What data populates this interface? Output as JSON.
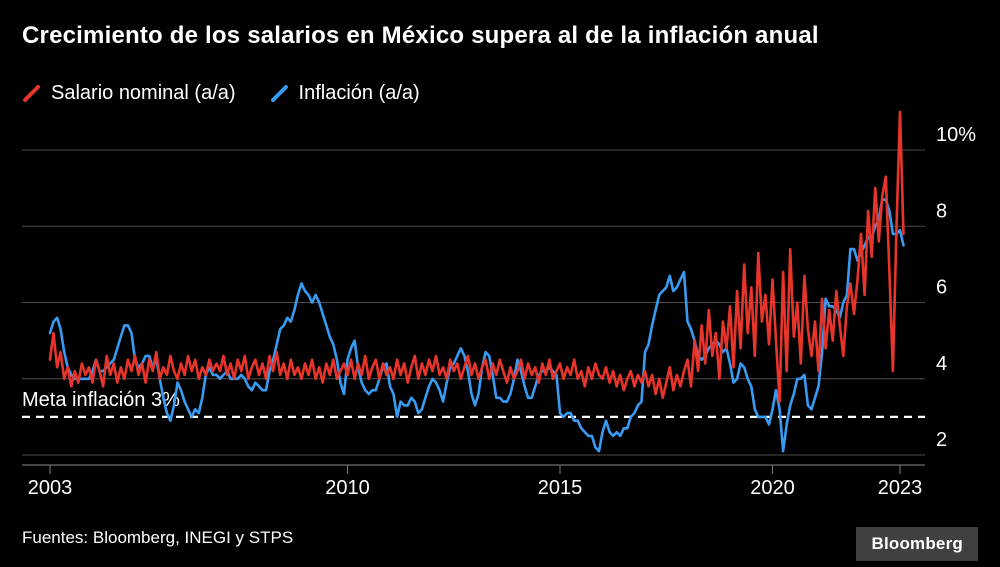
{
  "title": "Crecimiento de los salarios en México supera al de la inflación anual",
  "legend": [
    {
      "label": "Salario nominal (a/a)",
      "color": "#e8352b"
    },
    {
      "label": "Inflación (a/a)",
      "color": "#389bf2"
    }
  ],
  "source": "Fuentes: Bloomberg, INEGI y STPS",
  "logo": "Bloomberg",
  "colors": {
    "background": "#000000",
    "grid": "#4d4d4d",
    "axis": "#6e6e6e",
    "text": "#ffffff",
    "reference_line": "#ffffff"
  },
  "chart_data": {
    "type": "line",
    "title": "Crecimiento de los salarios en México supera al de la inflación anual",
    "x_start": 2003.0,
    "x_interval": "monthly",
    "xlim": [
      2002.3,
      2023.6
    ],
    "ylim": [
      1.6,
      11.3
    ],
    "grid": "horizontal",
    "legend_position": "top-left",
    "y_ticks": [
      {
        "value": 2,
        "label": "2"
      },
      {
        "value": 4,
        "label": "4"
      },
      {
        "value": 6,
        "label": "6"
      },
      {
        "value": 8,
        "label": "8"
      },
      {
        "value": 10,
        "label": "10%"
      }
    ],
    "x_ticks": [
      {
        "value": 2003,
        "label": "2003"
      },
      {
        "value": 2010,
        "label": "2010"
      },
      {
        "value": 2015,
        "label": "2015"
      },
      {
        "value": 2020,
        "label": "2020"
      },
      {
        "value": 2023,
        "label": "2023"
      }
    ],
    "reference_line": {
      "value": 3,
      "label": "Meta inflación 3%",
      "style": "dashed",
      "color": "#ffffff"
    },
    "series": [
      {
        "name": "Salario nominal (a/a)",
        "color": "#e8352b",
        "values": [
          4.5,
          5.2,
          4.3,
          4.7,
          4.0,
          4.3,
          3.8,
          4.2,
          3.9,
          4.4,
          4.1,
          4.3,
          3.9,
          4.5,
          4.2,
          3.8,
          4.6,
          4.1,
          4.4,
          3.9,
          4.3,
          4.0,
          4.5,
          4.2,
          4.6,
          4.1,
          4.4,
          3.9,
          4.5,
          4.2,
          4.7,
          4.0,
          4.3,
          4.1,
          4.6,
          4.2,
          4.0,
          4.4,
          4.1,
          4.6,
          4.2,
          4.5,
          4.0,
          4.3,
          4.1,
          4.5,
          4.2,
          4.4,
          4.2,
          4.6,
          4.1,
          4.4,
          4.0,
          4.5,
          4.2,
          4.6,
          4.0,
          4.3,
          4.5,
          4.1,
          4.4,
          4.0,
          4.6,
          4.2,
          4.7,
          4.1,
          4.4,
          4.0,
          4.5,
          4.1,
          4.3,
          4.0,
          4.4,
          4.1,
          4.5,
          4.0,
          4.3,
          3.9,
          4.4,
          4.1,
          4.5,
          4.0,
          4.2,
          4.4,
          4.1,
          4.5,
          4.0,
          4.4,
          4.1,
          4.6,
          4.0,
          4.3,
          4.5,
          4.0,
          4.4,
          4.1,
          4.3,
          4.0,
          4.5,
          4.1,
          4.4,
          3.9,
          4.3,
          4.6,
          4.0,
          4.4,
          4.1,
          4.5,
          4.2,
          4.6,
          4.1,
          4.3,
          4.0,
          4.5,
          4.2,
          4.4,
          4.0,
          4.3,
          4.6,
          4.1,
          4.4,
          4.0,
          4.3,
          4.5,
          4.0,
          4.4,
          4.1,
          4.5,
          4.2,
          3.9,
          4.3,
          4.0,
          4.2,
          4.5,
          4.0,
          4.4,
          4.1,
          4.3,
          3.9,
          4.4,
          4.1,
          4.5,
          4.0,
          4.2,
          4.4,
          4.0,
          4.3,
          4.1,
          4.5,
          4.0,
          4.2,
          3.8,
          4.3,
          4.0,
          4.4,
          4.1,
          4.0,
          4.3,
          3.9,
          4.2,
          3.8,
          4.1,
          3.7,
          4.0,
          4.2,
          3.8,
          4.1,
          3.9,
          4.2,
          3.8,
          4.1,
          3.6,
          4.0,
          3.5,
          3.9,
          4.3,
          3.7,
          4.1,
          3.8,
          4.2,
          4.5,
          3.8,
          5.0,
          4.2,
          5.4,
          4.4,
          5.8,
          4.6,
          5.2,
          4.0,
          5.5,
          4.8,
          5.9,
          4.3,
          6.3,
          4.8,
          7.0,
          5.2,
          6.4,
          4.6,
          7.3,
          5.5,
          6.2,
          4.9,
          6.6,
          5.0,
          3.4,
          6.8,
          4.2,
          7.4,
          5.1,
          6.0,
          4.4,
          6.7,
          5.3,
          4.6,
          5.5,
          4.2,
          6.1,
          4.8,
          5.8,
          5.0,
          6.3,
          5.4,
          4.6,
          5.9,
          6.5,
          5.7,
          6.6,
          7.8,
          6.2,
          8.4,
          7.2,
          9.0,
          7.6,
          8.8,
          9.3,
          6.8,
          4.2,
          8.0,
          11.0,
          7.8
        ]
      },
      {
        "name": "Inflación (a/a)",
        "color": "#389bf2",
        "values": [
          5.2,
          5.5,
          5.6,
          5.3,
          4.7,
          4.3,
          4.1,
          4.0,
          4.0,
          4.0,
          4.0,
          4.0,
          4.2,
          4.5,
          4.2,
          4.2,
          4.3,
          4.4,
          4.5,
          4.8,
          5.1,
          5.4,
          5.4,
          5.2,
          4.5,
          4.3,
          4.4,
          4.6,
          4.6,
          4.3,
          4.5,
          4.0,
          3.5,
          3.1,
          2.9,
          3.3,
          3.9,
          3.7,
          3.4,
          3.2,
          3.0,
          3.2,
          3.1,
          3.5,
          4.1,
          4.3,
          4.1,
          4.1,
          4.0,
          4.1,
          4.2,
          4.0,
          4.0,
          4.0,
          4.1,
          4.0,
          3.8,
          3.7,
          3.9,
          3.8,
          3.7,
          3.7,
          4.2,
          4.5,
          4.9,
          5.3,
          5.4,
          5.6,
          5.5,
          5.8,
          6.2,
          6.5,
          6.3,
          6.2,
          6.0,
          6.2,
          6.0,
          5.7,
          5.4,
          5.1,
          4.9,
          4.5,
          3.9,
          3.6,
          4.5,
          4.8,
          5.0,
          4.3,
          3.9,
          3.7,
          3.6,
          3.7,
          3.7,
          4.0,
          4.3,
          4.4,
          3.8,
          3.6,
          3.0,
          3.4,
          3.3,
          3.3,
          3.5,
          3.4,
          3.1,
          3.2,
          3.5,
          3.8,
          4.0,
          3.9,
          3.7,
          3.4,
          3.9,
          4.3,
          4.4,
          4.6,
          4.8,
          4.6,
          4.2,
          3.6,
          3.3,
          3.6,
          4.3,
          4.7,
          4.6,
          4.1,
          3.5,
          3.5,
          3.4,
          3.4,
          3.6,
          4.0,
          4.5,
          4.2,
          3.8,
          3.5,
          3.5,
          3.8,
          4.1,
          4.2,
          4.2,
          4.3,
          4.2,
          4.1,
          3.1,
          3.0,
          3.1,
          3.1,
          2.9,
          2.9,
          2.7,
          2.6,
          2.5,
          2.5,
          2.2,
          2.1,
          2.6,
          2.9,
          2.6,
          2.5,
          2.6,
          2.5,
          2.7,
          2.7,
          3.0,
          3.1,
          3.3,
          3.4,
          4.7,
          4.9,
          5.4,
          5.8,
          6.2,
          6.3,
          6.4,
          6.7,
          6.3,
          6.4,
          6.6,
          6.8,
          5.5,
          5.3,
          5.0,
          4.6,
          4.5,
          4.6,
          4.8,
          4.9,
          5.0,
          4.9,
          4.7,
          4.8,
          4.4,
          3.9,
          4.0,
          4.4,
          4.3,
          4.0,
          3.8,
          3.2,
          3.0,
          3.0,
          3.0,
          2.8,
          3.2,
          3.7,
          3.2,
          2.1,
          2.8,
          3.3,
          3.6,
          4.0,
          4.0,
          4.1,
          3.3,
          3.2,
          3.5,
          3.8,
          4.7,
          6.1,
          5.9,
          5.9,
          5.8,
          5.6,
          6.0,
          6.2,
          7.4,
          7.4,
          7.1,
          7.3,
          7.5,
          7.7,
          7.7,
          8.0,
          8.2,
          8.7,
          8.7,
          8.4,
          7.8,
          7.8,
          7.9,
          7.5
        ]
      }
    ]
  }
}
